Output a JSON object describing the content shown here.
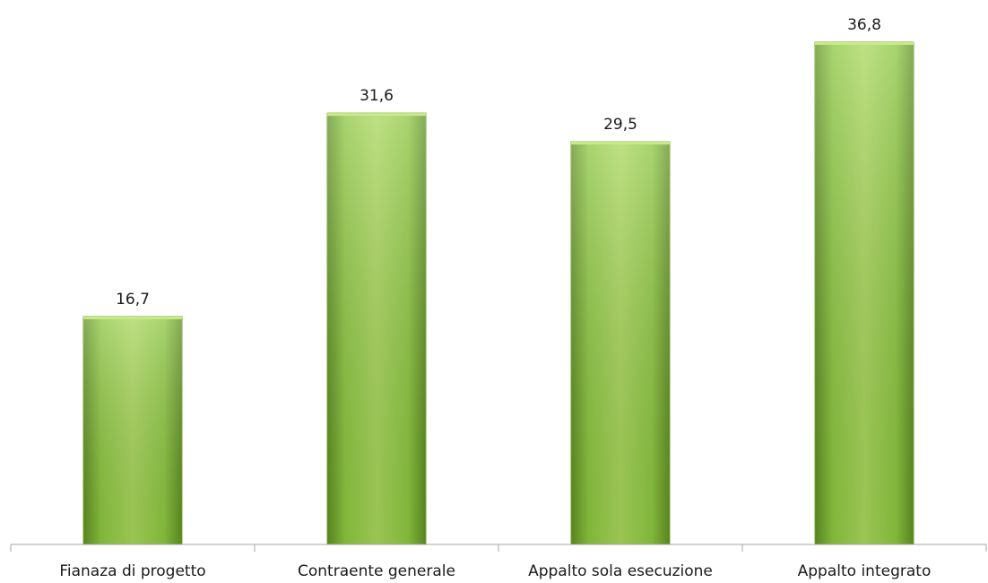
{
  "chart_data": {
    "type": "bar",
    "categories": [
      "Fianaza di progetto",
      "Contraente generale",
      "Appalto sola esecuzione",
      "Appalto integrato"
    ],
    "values": [
      16.7,
      31.6,
      29.5,
      36.8
    ],
    "value_labels": [
      "16,7",
      "31,6",
      "29,5",
      "36,8"
    ],
    "title": "",
    "xlabel": "",
    "ylabel": "",
    "ylim": [
      0,
      40
    ],
    "grid": false,
    "legend": "none",
    "bar_color": "#8cc63f",
    "bar_color_light": "#b5e06a",
    "bar_color_dark": "#6a9a2a"
  }
}
